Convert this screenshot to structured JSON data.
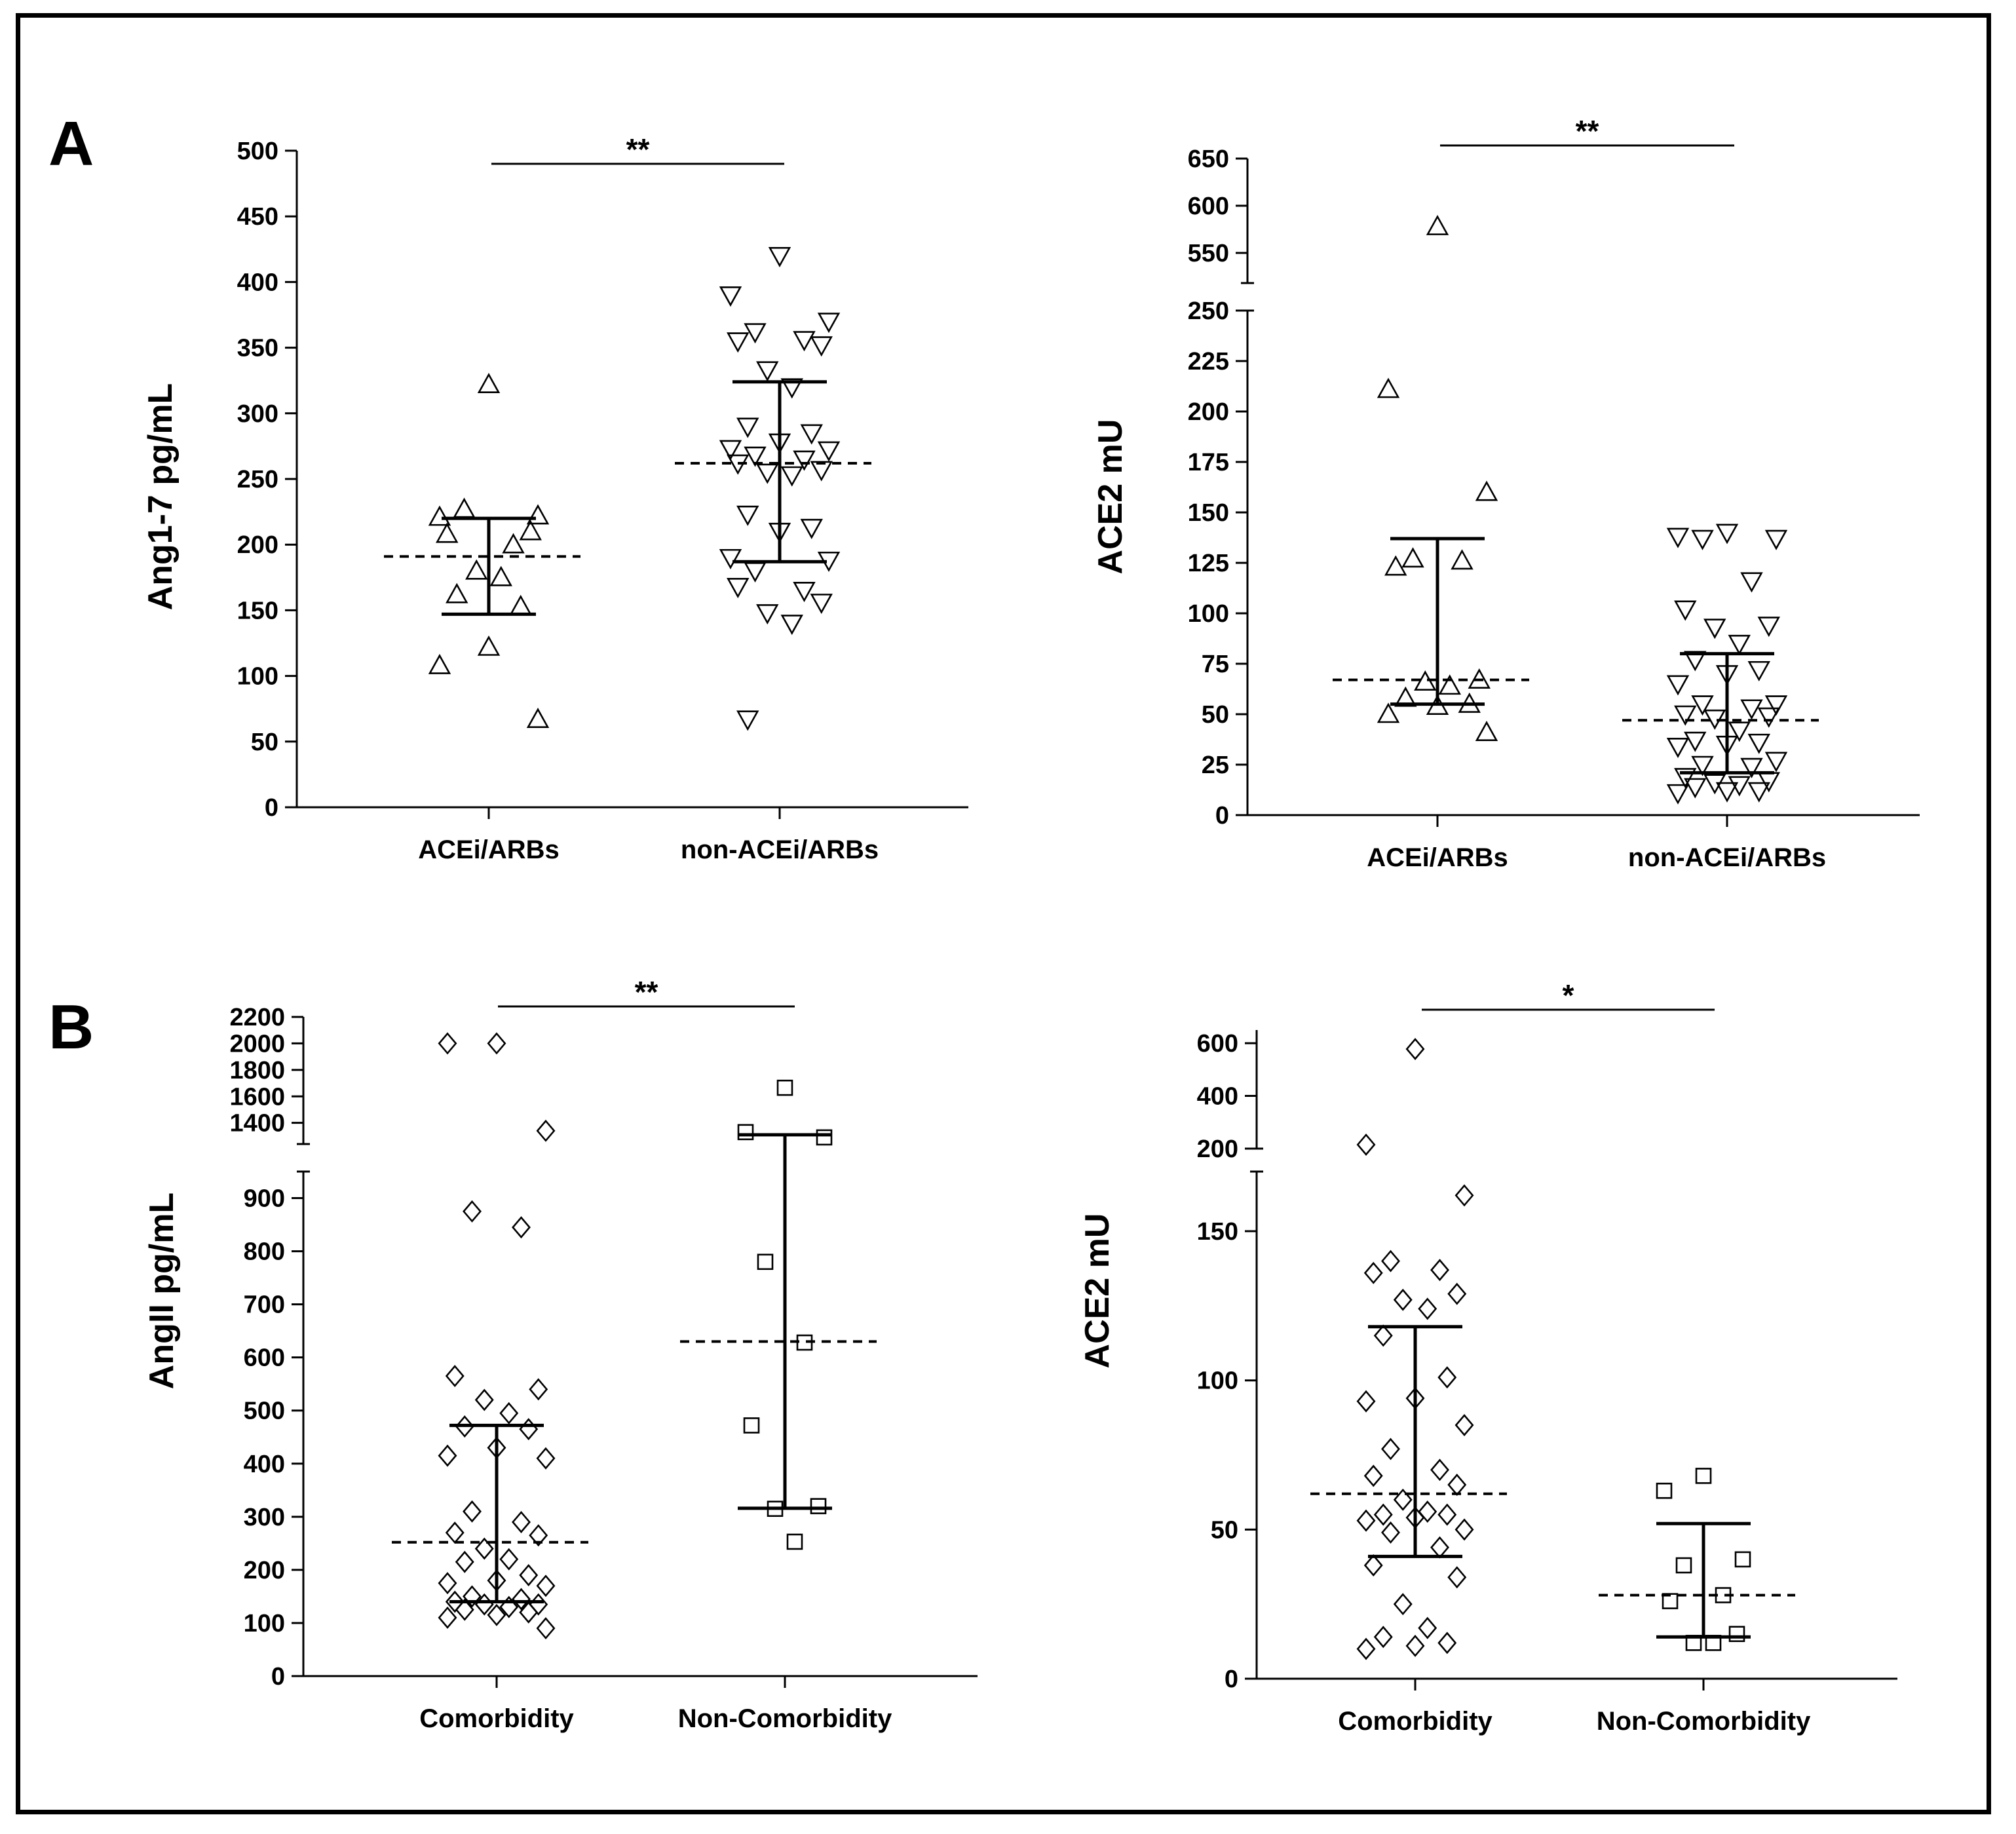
{
  "figure": {
    "panel_letters": [
      "A",
      "B"
    ]
  },
  "chart_data": [
    {
      "id": "A1",
      "type": "scatter",
      "panel": "A",
      "ylabel": "Ang1-7 pg/mL",
      "categories": [
        "ACEi/ARBs",
        "non-ACEi/ARBs"
      ],
      "segments": [
        {
          "range": [
            0,
            500
          ],
          "ticks": [
            0,
            50,
            100,
            150,
            200,
            250,
            300,
            350,
            400,
            450,
            500
          ]
        }
      ],
      "significance": "**",
      "series": [
        {
          "name": "ACEi/ARBs",
          "marker": "triangle-up",
          "median": 191,
          "iqr": [
            147,
            220
          ],
          "values": [
            322,
            221,
            222,
            227,
            200,
            208,
            210,
            180,
            175,
            162,
            153,
            122,
            108,
            67
          ]
        },
        {
          "name": "non-ACEi/ARBs",
          "marker": "triangle-down",
          "median": 262,
          "iqr": [
            187,
            324
          ],
          "values": [
            420,
            390,
            370,
            362,
            356,
            355,
            352,
            333,
            320,
            290,
            285,
            278,
            273,
            272,
            268,
            265,
            262,
            257,
            255,
            253,
            223,
            213,
            210,
            190,
            188,
            180,
            165,
            168,
            156,
            148,
            140,
            67
          ]
        }
      ]
    },
    {
      "id": "A2",
      "type": "scatter",
      "panel": "A",
      "ylabel": "ACE2 mU",
      "categories": [
        "ACEi/ARBs",
        "non-ACEi/ARBs"
      ],
      "segments": [
        {
          "range": [
            0,
            250
          ],
          "ticks": [
            0,
            25,
            50,
            75,
            100,
            125,
            150,
            175,
            200,
            225,
            250
          ]
        },
        {
          "range": [
            518,
            650
          ],
          "ticks": [
            550,
            600,
            650
          ]
        }
      ],
      "significance": "**",
      "series": [
        {
          "name": "ACEi/ARBs",
          "marker": "triangle-up",
          "median": 67,
          "iqr": [
            55,
            137
          ],
          "values": [
            578,
            211,
            160,
            127,
            126,
            123,
            67,
            66,
            64,
            58,
            55,
            54,
            50,
            41
          ]
        },
        {
          "name": "non-ACEi/ARBs",
          "marker": "triangle-down",
          "median": 47,
          "iqr": [
            21,
            80
          ],
          "values": [
            140,
            138,
            137,
            137,
            116,
            102,
            94,
            93,
            85,
            77,
            72,
            70,
            65,
            55,
            55,
            53,
            50,
            49,
            48,
            42,
            37,
            36,
            35,
            34,
            27,
            25,
            24,
            19,
            17,
            16,
            15,
            14,
            12,
            12,
            11
          ]
        }
      ]
    },
    {
      "id": "B1",
      "type": "scatter",
      "panel": "B",
      "ylabel": "AngII pg/mL",
      "categories": [
        "Comorbidity",
        "Non-Comorbidity"
      ],
      "segments": [
        {
          "range": [
            0,
            950
          ],
          "ticks": [
            0,
            100,
            200,
            300,
            400,
            500,
            600,
            700,
            800,
            900
          ]
        },
        {
          "range": [
            1240,
            2200
          ],
          "ticks": [
            1400,
            1600,
            1800,
            2000,
            2200
          ]
        }
      ],
      "significance": "**",
      "series": [
        {
          "name": "Comorbidity",
          "marker": "diamond",
          "median": 252,
          "iqr": [
            140,
            472
          ],
          "values": [
            2000,
            2000,
            1340,
            875,
            845,
            565,
            540,
            520,
            495,
            470,
            465,
            430,
            415,
            410,
            310,
            290,
            270,
            265,
            240,
            220,
            215,
            190,
            180,
            175,
            170,
            150,
            145,
            140,
            135,
            135,
            130,
            125,
            120,
            115,
            110,
            90
          ]
        },
        {
          "name": "Non-Comorbidity",
          "marker": "square",
          "median": 630,
          "iqr": [
            316,
            1310
          ],
          "values": [
            1665,
            1330,
            1290,
            780,
            628,
            472,
            320,
            315,
            253
          ]
        }
      ]
    },
    {
      "id": "B2",
      "type": "scatter",
      "panel": "B",
      "ylabel": "ACE2 mU",
      "categories": [
        "Comorbidity",
        "Non-Comorbidity"
      ],
      "segments": [
        {
          "range": [
            0,
            170
          ],
          "ticks": [
            0,
            50,
            100,
            150
          ]
        },
        {
          "range": [
            200,
            650
          ],
          "ticks": [
            200,
            400,
            600
          ]
        }
      ],
      "significance": "*",
      "series": [
        {
          "name": "Comorbidity",
          "marker": "diamond",
          "median": 62,
          "iqr": [
            41,
            118
          ],
          "values": [
            578,
            215,
            162,
            140,
            137,
            136,
            129,
            127,
            124,
            115,
            101,
            94,
            93,
            85,
            77,
            70,
            68,
            65,
            60,
            56,
            55,
            55,
            54,
            53,
            50,
            49,
            44,
            38,
            34,
            25,
            17,
            14,
            12,
            11,
            10
          ]
        },
        {
          "name": "Non-Comorbidity",
          "marker": "square",
          "median": 28,
          "iqr": [
            14,
            52
          ],
          "values": [
            68,
            63,
            40,
            38,
            28,
            26,
            15,
            12,
            12
          ]
        }
      ]
    }
  ]
}
